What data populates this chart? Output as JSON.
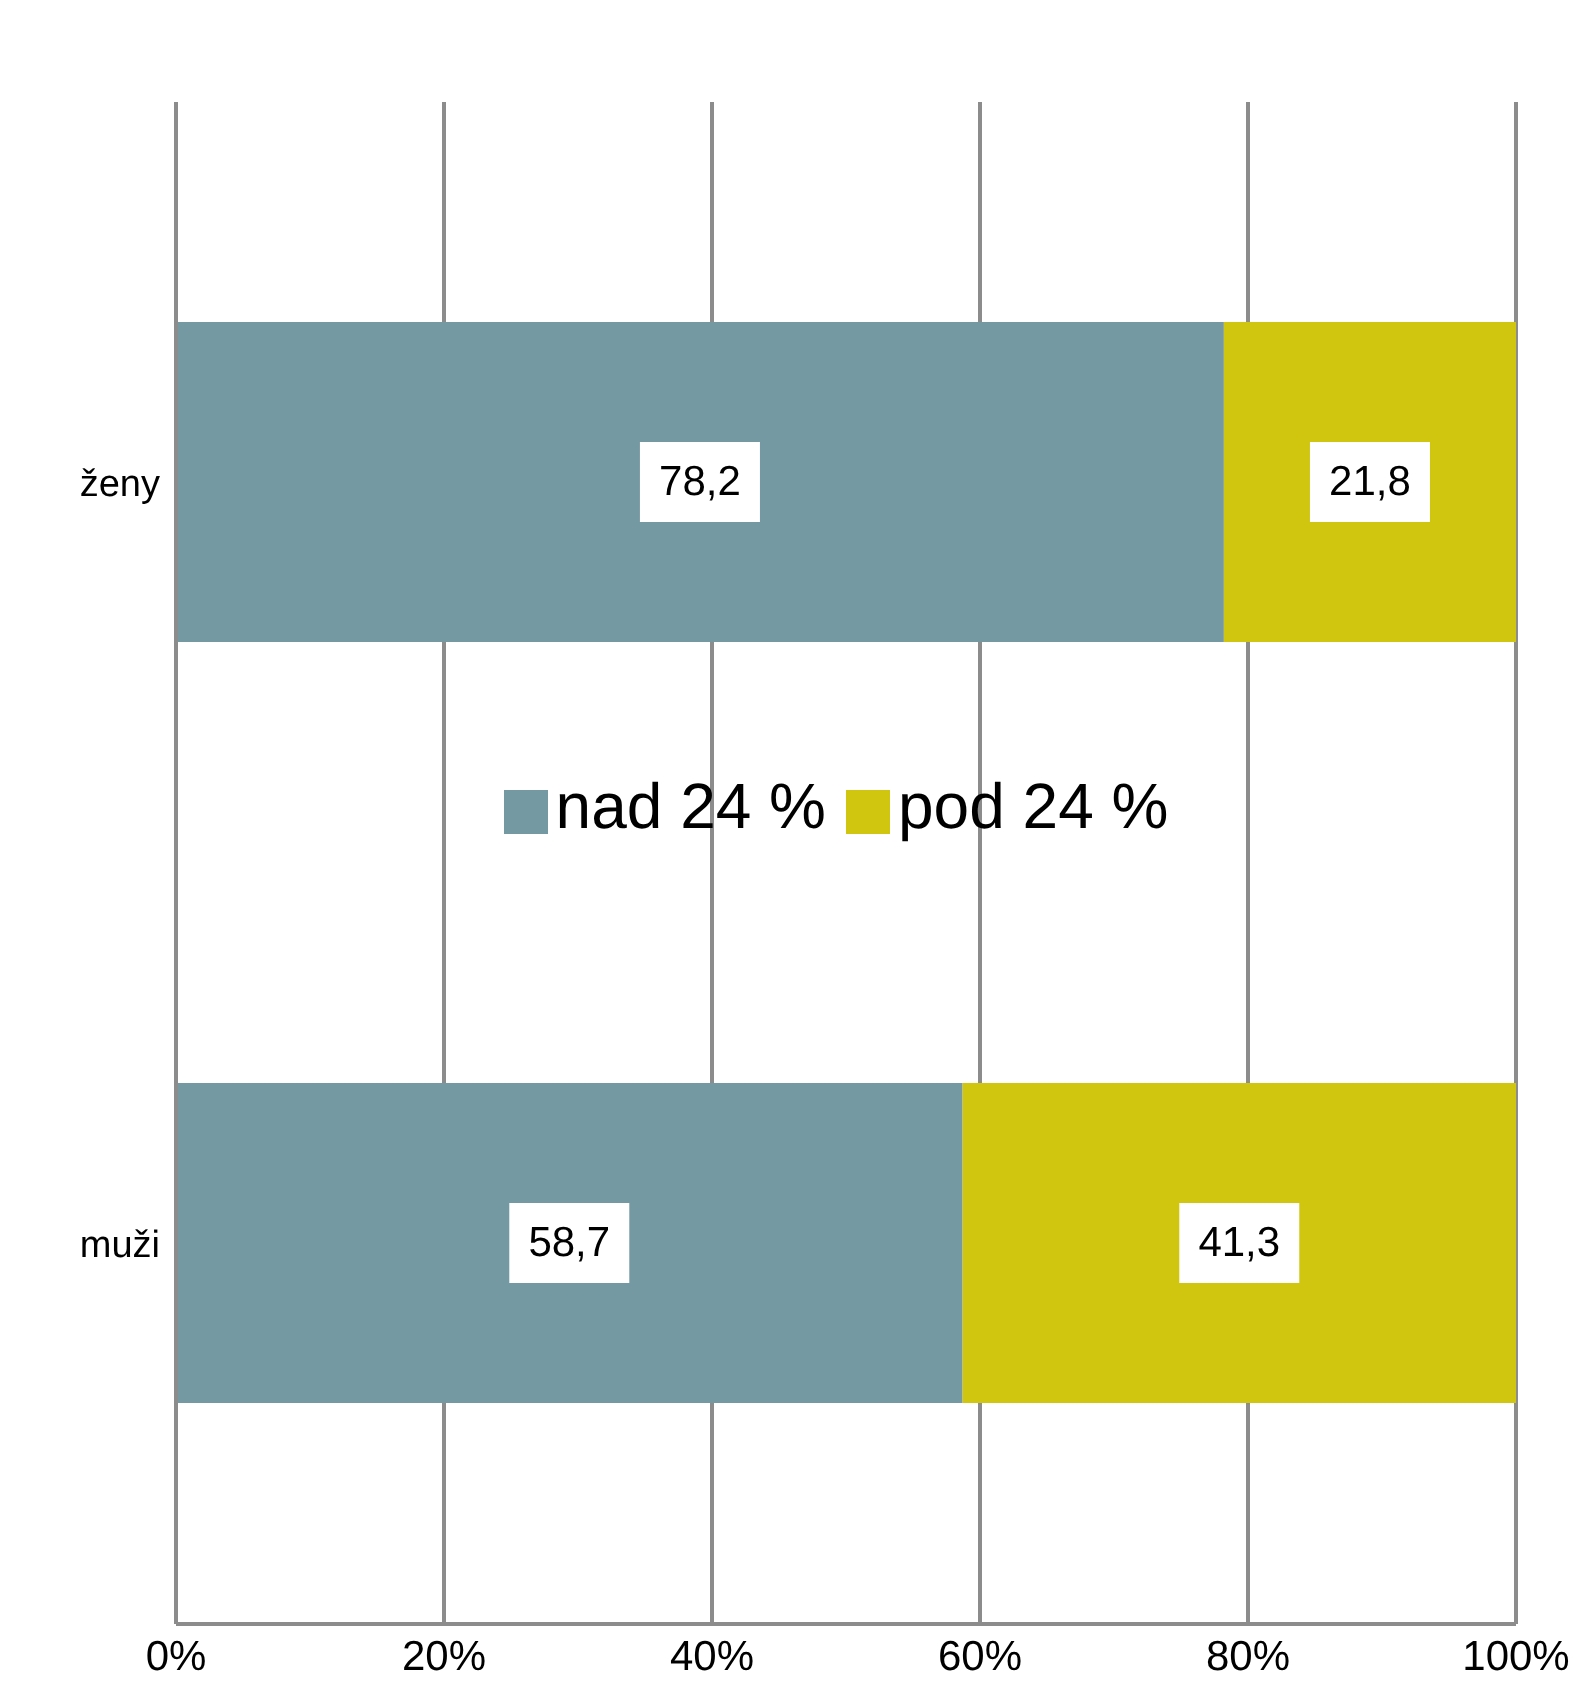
{
  "chart_data": {
    "type": "bar",
    "orientation": "horizontal",
    "stacked": true,
    "categories": [
      "ženy",
      "muži"
    ],
    "series": [
      {
        "name": "nad 24 %",
        "color": "#7599a3",
        "values": [
          78.2,
          58.7
        ],
        "value_labels": [
          "78,2",
          "58,7"
        ]
      },
      {
        "name": "pod 24 %",
        "color": "#d0c50f",
        "values": [
          21.8,
          41.3
        ],
        "value_labels": [
          "21,8",
          "41,3"
        ]
      }
    ],
    "xlim": [
      0,
      100
    ],
    "xticks": [
      {
        "value": 0,
        "label": "0%"
      },
      {
        "value": 20,
        "label": "20%"
      },
      {
        "value": 40,
        "label": "40%"
      },
      {
        "value": 60,
        "label": "60%"
      },
      {
        "value": 80,
        "label": "80%"
      },
      {
        "value": 100,
        "label": "100%"
      }
    ],
    "grid": "x",
    "legend": "center"
  }
}
